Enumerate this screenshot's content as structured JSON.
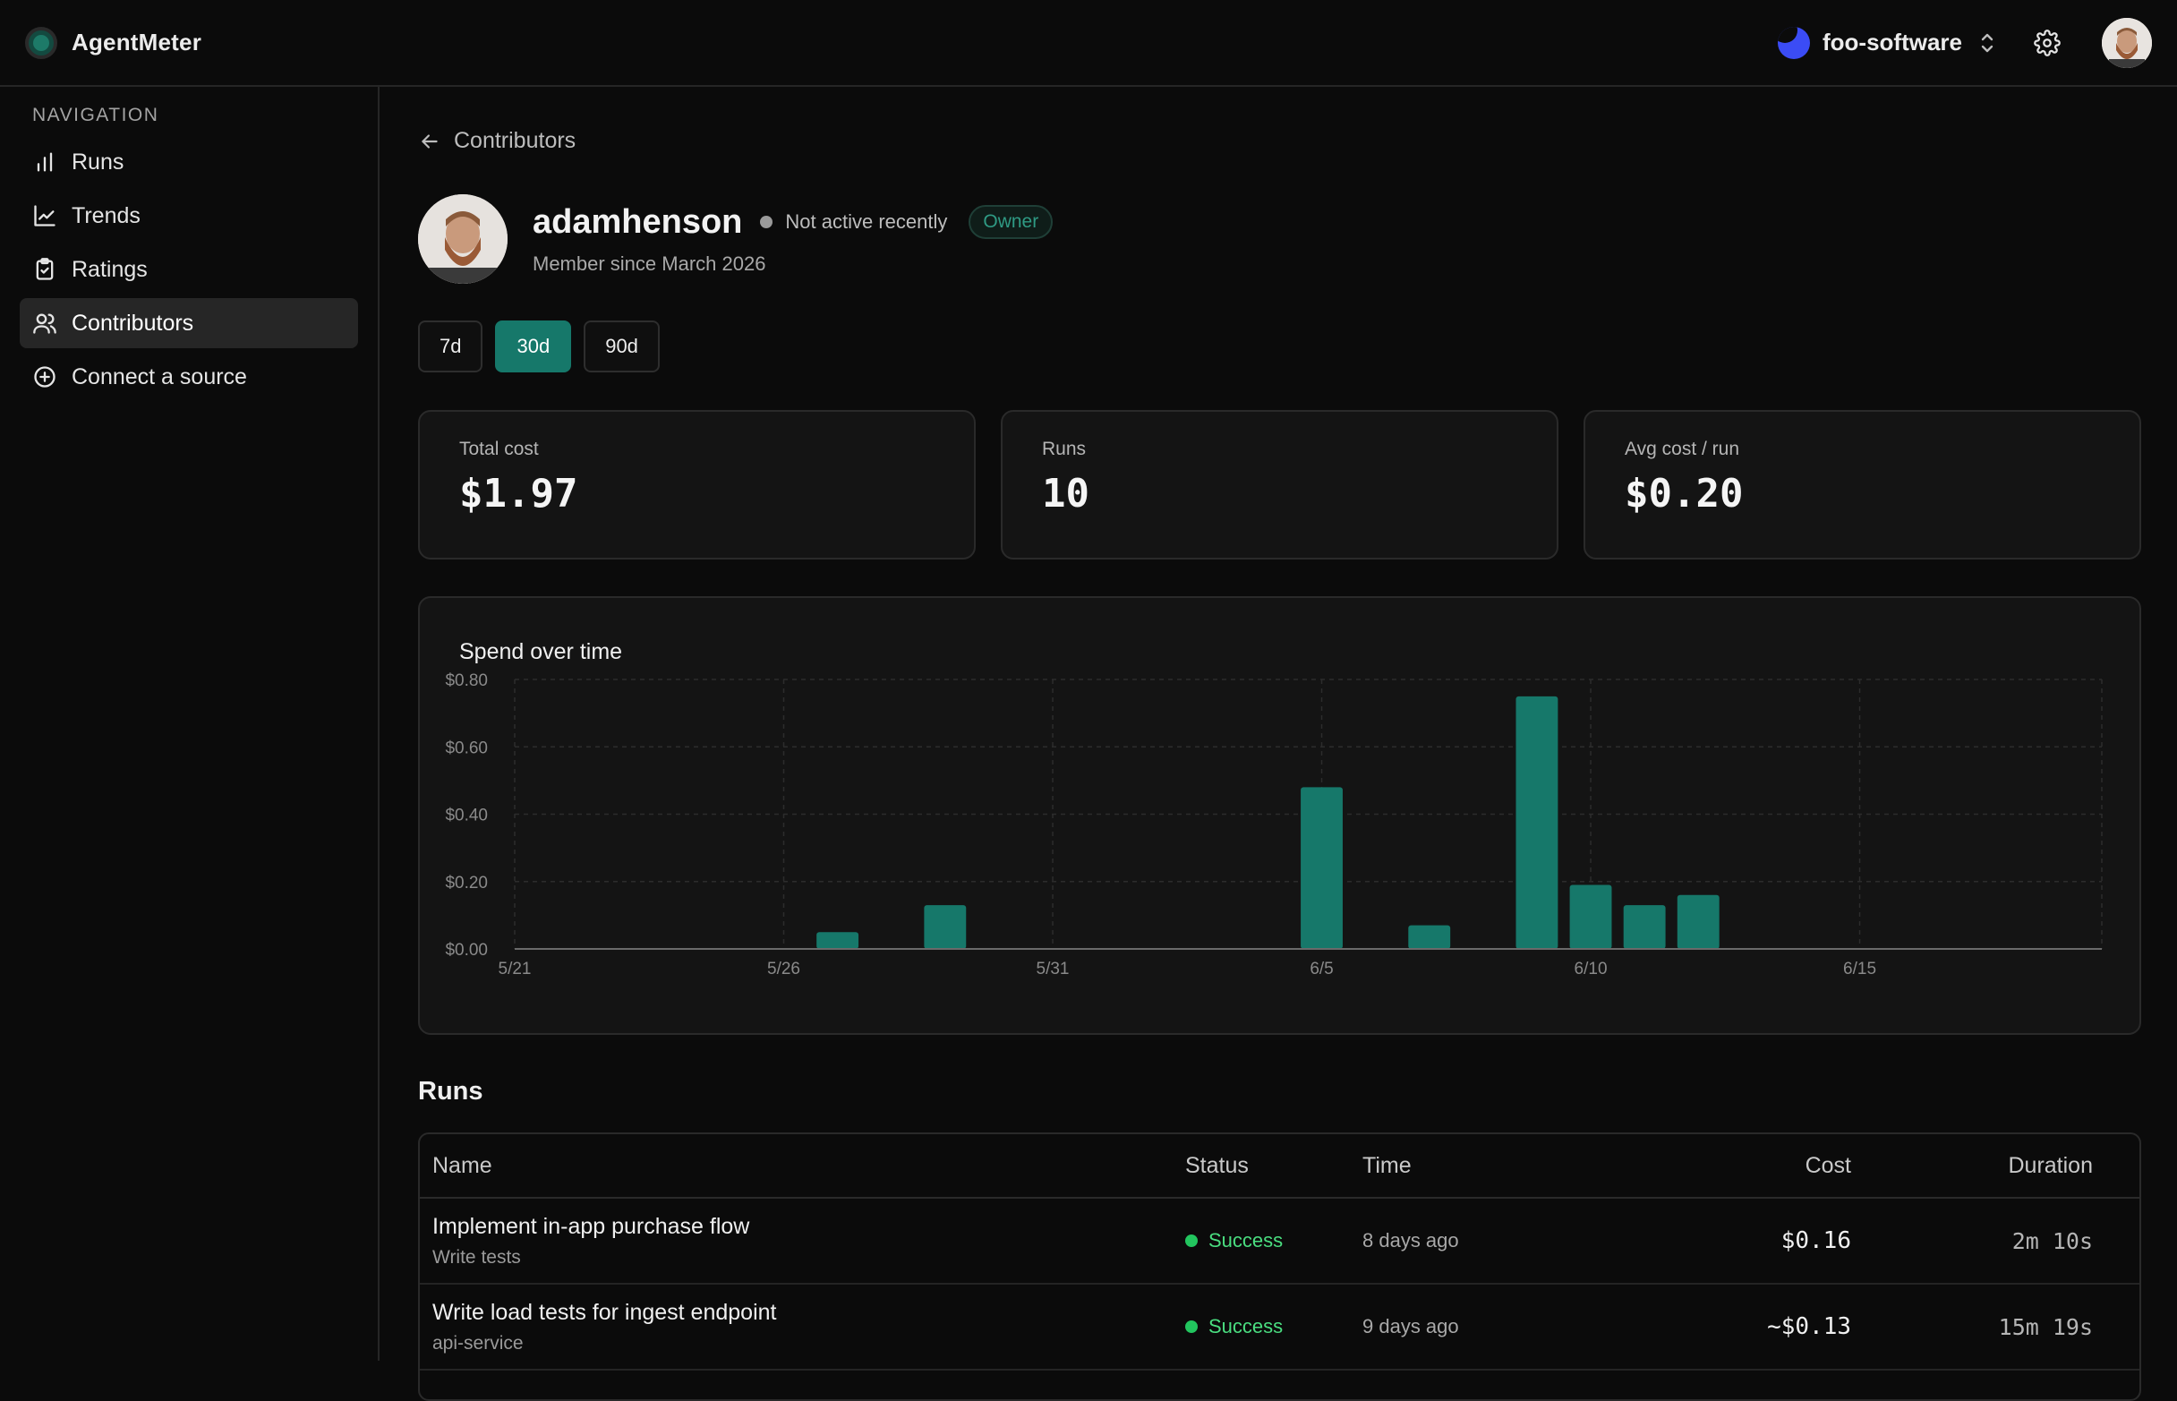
{
  "app": {
    "name": "AgentMeter"
  },
  "org": {
    "name": "foo-software"
  },
  "nav": {
    "heading": "NAVIGATION",
    "items": [
      {
        "label": "Runs",
        "icon": "bar-chart-icon"
      },
      {
        "label": "Trends",
        "icon": "line-chart-icon"
      },
      {
        "label": "Ratings",
        "icon": "clipboard-check-icon"
      },
      {
        "label": "Contributors",
        "icon": "users-icon",
        "active": true
      },
      {
        "label": "Connect a source",
        "icon": "plus-circle-icon"
      }
    ]
  },
  "breadcrumb": {
    "back_label": "Contributors"
  },
  "profile": {
    "username": "adamhenson",
    "status": "Not active recently",
    "role": "Owner",
    "member_since": "Member since March 2026"
  },
  "ranges": [
    {
      "label": "7d",
      "active": false
    },
    {
      "label": "30d",
      "active": true
    },
    {
      "label": "90d",
      "active": false
    }
  ],
  "stats": [
    {
      "label": "Total cost",
      "value": "$1.97"
    },
    {
      "label": "Runs",
      "value": "10"
    },
    {
      "label": "Avg cost / run",
      "value": "$0.20"
    }
  ],
  "colors": {
    "accent": "#16786a",
    "success": "#22c55e",
    "owner": "#2f9a84"
  },
  "chart_data": {
    "type": "bar",
    "title": "Spend over time",
    "xlabel": "",
    "ylabel": "",
    "ylim": [
      0,
      0.8
    ],
    "yticks": [
      "$0.00",
      "$0.20",
      "$0.40",
      "$0.60",
      "$0.80"
    ],
    "xticks": [
      "5/21",
      "5/26",
      "5/31",
      "6/5",
      "6/10",
      "6/15"
    ],
    "grid": true,
    "categories": [
      "5/21",
      "5/22",
      "5/23",
      "5/24",
      "5/25",
      "5/26",
      "5/27",
      "5/28",
      "5/29",
      "5/30",
      "5/31",
      "6/1",
      "6/2",
      "6/3",
      "6/4",
      "6/5",
      "6/6",
      "6/7",
      "6/8",
      "6/9",
      "6/10",
      "6/11",
      "6/12",
      "6/13",
      "6/14",
      "6/15",
      "6/16",
      "6/17",
      "6/18",
      "6/19"
    ],
    "values": [
      0,
      0,
      0,
      0,
      0,
      0,
      0.05,
      0,
      0.13,
      0,
      0,
      0,
      0,
      0,
      0,
      0.48,
      0,
      0.07,
      0,
      0.75,
      0.19,
      0.13,
      0.16,
      0,
      0,
      0,
      0,
      0,
      0,
      0
    ]
  },
  "runs": {
    "title": "Runs",
    "columns": [
      "Name",
      "Status",
      "Time",
      "Cost",
      "Duration"
    ],
    "rows": [
      {
        "name": "Implement in-app purchase flow",
        "sub": "Write tests",
        "status": "Success",
        "time": "8 days ago",
        "cost": "$0.16",
        "duration": "2m 10s"
      },
      {
        "name": "Write load tests for ingest endpoint",
        "sub": "api-service",
        "status": "Success",
        "time": "9 days ago",
        "cost": "~$0.13",
        "duration": "15m 19s"
      }
    ]
  }
}
